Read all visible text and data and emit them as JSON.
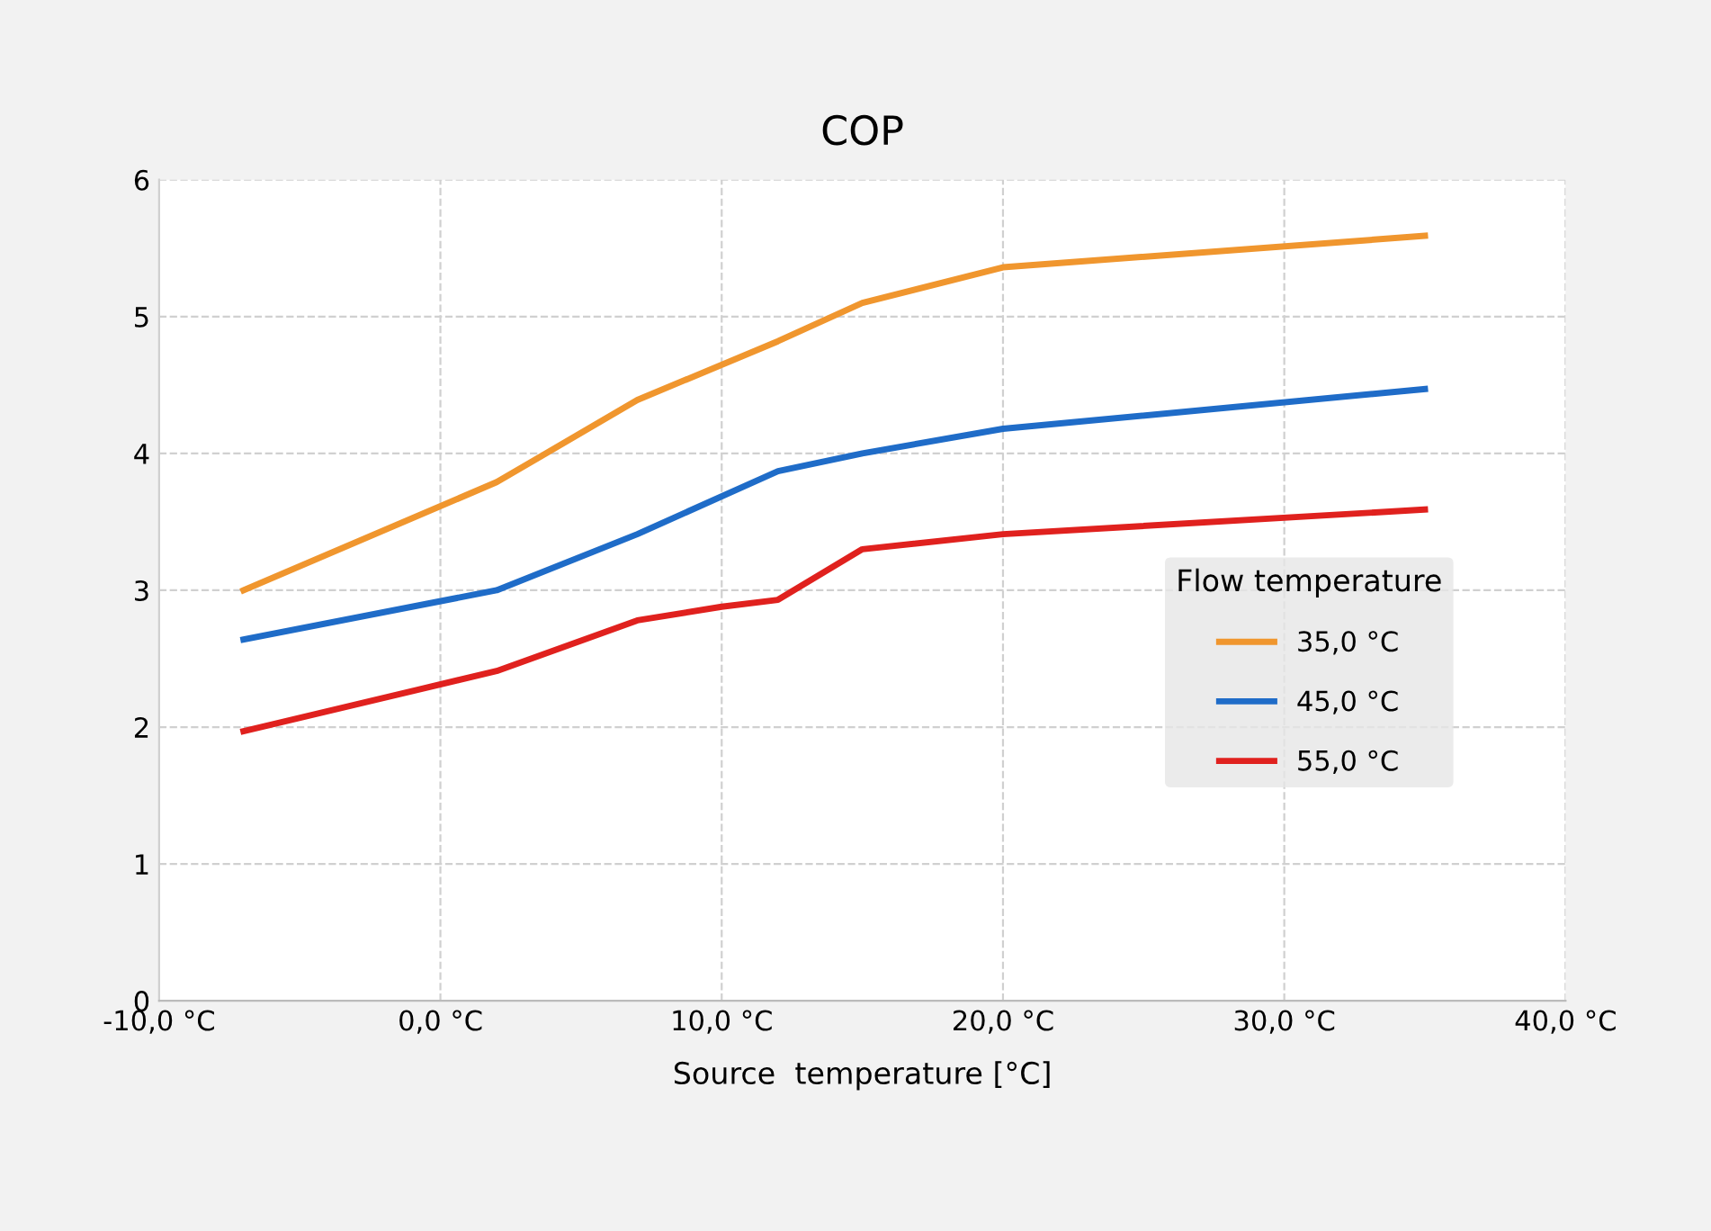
{
  "chart_data": {
    "type": "line",
    "title": "COP",
    "xlabel": "Source  temperature [°C]",
    "legend_title": "Flow temperature",
    "series": [
      {
        "name": "35,0 °C",
        "color": "#f0962e",
        "x": [
          -7,
          2,
          7,
          12,
          15,
          20,
          35
        ],
        "values": [
          3.0,
          3.79,
          4.39,
          4.82,
          5.1,
          5.36,
          5.59
        ]
      },
      {
        "name": "45,0 °C",
        "color": "#1f6cc8",
        "x": [
          -7,
          2,
          7,
          12,
          15,
          20,
          35
        ],
        "values": [
          2.64,
          3.0,
          3.41,
          3.87,
          4.0,
          4.18,
          4.47
        ]
      },
      {
        "name": "55,0 °C",
        "color": "#e0211e",
        "x": [
          -7,
          2,
          7,
          10,
          12,
          15,
          20,
          35
        ],
        "values": [
          1.97,
          2.41,
          2.78,
          2.88,
          2.93,
          3.3,
          3.41,
          3.59
        ]
      }
    ],
    "xlim": [
      -10,
      40
    ],
    "xticks": [
      {
        "value": -10,
        "label": "-10,0 °C"
      },
      {
        "value": 0,
        "label": "0,0 °C"
      },
      {
        "value": 10,
        "label": "10,0 °C"
      },
      {
        "value": 20,
        "label": "20,0 °C"
      },
      {
        "value": 30,
        "label": "30,0 °C"
      },
      {
        "value": 40,
        "label": "40,0 °C"
      }
    ],
    "ylim": [
      0,
      6
    ],
    "yticks": [
      0,
      1,
      2,
      3,
      4,
      5,
      6
    ],
    "grid": true,
    "legend": "right",
    "marker": "none",
    "line_style": "solid"
  }
}
